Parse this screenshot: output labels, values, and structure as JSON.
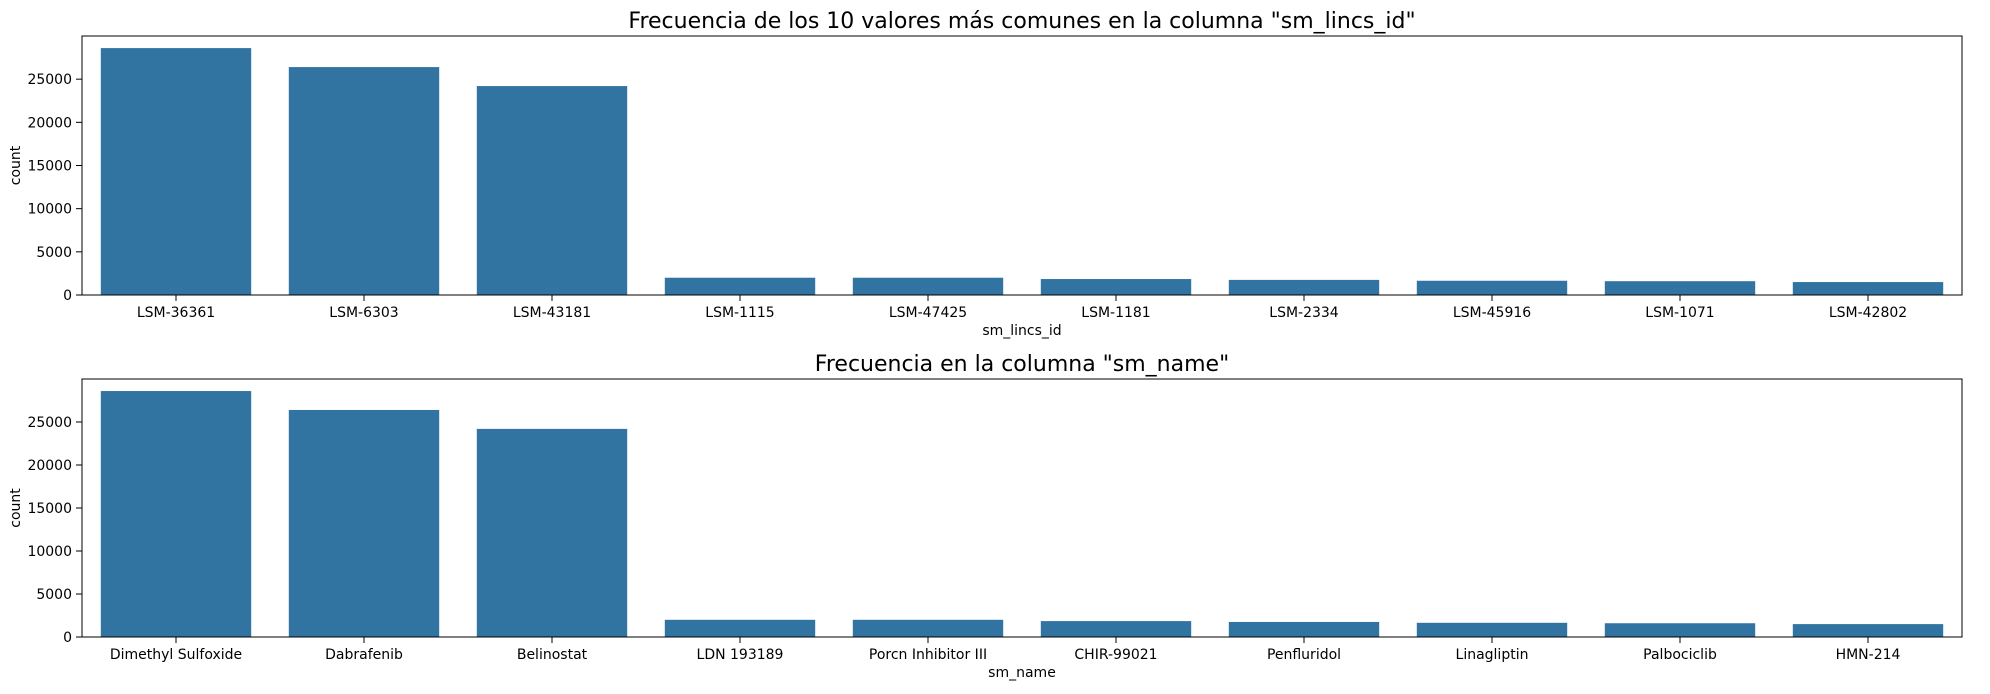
{
  "colors": {
    "bar": "#3274a1",
    "axis": "#000000",
    "background": "#ffffff"
  },
  "chart_data": [
    {
      "type": "bar",
      "title": "Frecuencia de los 10 valores más comunes en la columna \"sm_lincs_id\"",
      "xlabel": "sm_lincs_id",
      "ylabel": "count",
      "categories": [
        "LSM-36361",
        "LSM-6303",
        "LSM-43181",
        "LSM-1115",
        "LSM-47425",
        "LSM-1181",
        "LSM-2334",
        "LSM-45916",
        "LSM-1071",
        "LSM-42802"
      ],
      "values": [
        28600,
        26400,
        24200,
        2000,
        2000,
        1850,
        1750,
        1650,
        1600,
        1500
      ],
      "yticks": [
        0,
        5000,
        10000,
        15000,
        20000,
        25000
      ],
      "ylim": [
        0,
        30000
      ],
      "grid": false,
      "legend": "none"
    },
    {
      "type": "bar",
      "title": "Frecuencia en la columna \"sm_name\"",
      "xlabel": "sm_name",
      "ylabel": "count",
      "categories": [
        "Dimethyl Sulfoxide",
        "Dabrafenib",
        "Belinostat",
        "LDN 193189",
        "Porcn Inhibitor III",
        "CHIR-99021",
        "Penfluridol",
        "Linagliptin",
        "Palbociclib",
        "HMN-214"
      ],
      "values": [
        28600,
        26400,
        24200,
        2000,
        2000,
        1850,
        1750,
        1650,
        1600,
        1500
      ],
      "yticks": [
        0,
        5000,
        10000,
        15000,
        20000,
        25000
      ],
      "ylim": [
        0,
        30000
      ],
      "grid": false,
      "legend": "none"
    }
  ]
}
